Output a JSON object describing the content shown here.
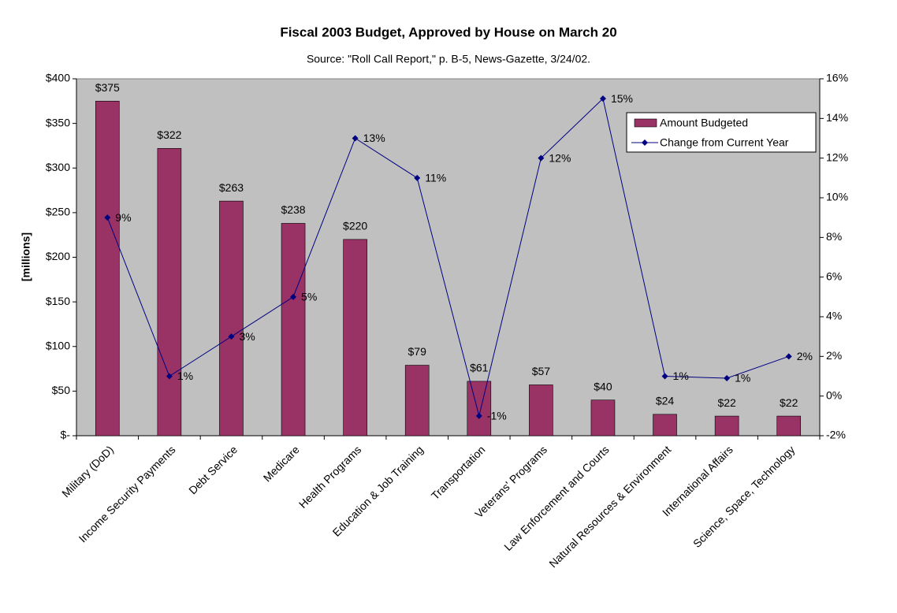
{
  "chart_data": {
    "type": "bar-line",
    "title": "Fiscal 2003 Budget, Approved by House on March 20",
    "subtitle": "Source:  \"Roll Call Report,\" p. B-5, News-Gazette, 3/24/02.",
    "y_label": "[millions]",
    "categories": [
      "Military (DoD)",
      "Income Security Payments",
      "Debt Service",
      "Medicare",
      "Health Programs",
      "Education & Job Training",
      "Transportation",
      "Veterans' Programs",
      "Law Enforcement and Courts",
      "Natural Resources & Environment",
      "International Affairs",
      "Science, Space, Technology"
    ],
    "series": [
      {
        "name": "Amount Budgeted",
        "type": "bar",
        "color": "#993366",
        "values": [
          375,
          322,
          263,
          238,
          220,
          79,
          61,
          57,
          40,
          24,
          22,
          22
        ],
        "value_labels": [
          "$375",
          "$322",
          "$263",
          "$238",
          "$220",
          "$79",
          "$61",
          "$57",
          "$40",
          "$24",
          "$22",
          "$22"
        ]
      },
      {
        "name": "Change from Current Year",
        "type": "line",
        "axis": "y2",
        "color": "#000080",
        "values": [
          9,
          1,
          3,
          5,
          13,
          11,
          -1,
          12,
          15,
          1,
          0.9,
          2
        ],
        "value_labels": [
          "9%",
          "1%",
          "3%",
          "5%",
          "13%",
          "11%",
          "-1%",
          "12%",
          "15%",
          "1%",
          "1%",
          "2%"
        ]
      }
    ],
    "ylim": [
      0,
      400
    ],
    "yticks": [
      {
        "value": 0,
        "label": "$-"
      },
      {
        "value": 50,
        "label": "$50"
      },
      {
        "value": 100,
        "label": "$100"
      },
      {
        "value": 150,
        "label": "$150"
      },
      {
        "value": 200,
        "label": "$200"
      },
      {
        "value": 250,
        "label": "$250"
      },
      {
        "value": 300,
        "label": "$300"
      },
      {
        "value": 350,
        "label": "$350"
      },
      {
        "value": 400,
        "label": "$400"
      }
    ],
    "y2lim": [
      -2,
      16
    ],
    "y2ticks": [
      {
        "value": -2,
        "label": "-2%"
      },
      {
        "value": 0,
        "label": "0%"
      },
      {
        "value": 2,
        "label": "2%"
      },
      {
        "value": 4,
        "label": "4%"
      },
      {
        "value": 6,
        "label": "6%"
      },
      {
        "value": 8,
        "label": "8%"
      },
      {
        "value": 10,
        "label": "10%"
      },
      {
        "value": 12,
        "label": "12%"
      },
      {
        "value": 14,
        "label": "14%"
      },
      {
        "value": 16,
        "label": "16%"
      }
    ],
    "plot_background": "#c0c0c0",
    "legend": "upper right"
  }
}
